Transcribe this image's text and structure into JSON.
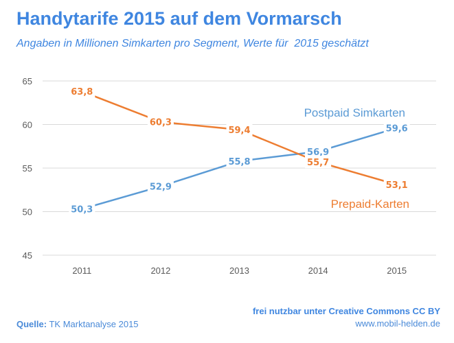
{
  "title": "Handytarife 2015 auf dem Vormarsch",
  "subtitle": "Angaben in Millionen Simkarten pro Segment, Werte für  2015 geschätzt",
  "footer": {
    "source_label": "Quelle:",
    "source_text": "TK Marktanalyse 2015",
    "license": "frei nutzbar unter Creative Commons CC BY",
    "url": "www.mobil-helden.de"
  },
  "chart_data": {
    "type": "line",
    "categories": [
      "2011",
      "2012",
      "2013",
      "2014",
      "2015"
    ],
    "ylim": [
      45,
      65
    ],
    "yticks": [
      "45",
      "50",
      "55",
      "60",
      "65"
    ],
    "ytick_values": [
      45,
      50,
      55,
      60,
      65
    ],
    "grid": true,
    "series": [
      {
        "name": "Postpaid Simkarten",
        "color": "#5b9bd5",
        "values": [
          50.3,
          52.9,
          55.8,
          56.9,
          59.6
        ],
        "labels": [
          "50,3",
          "52,9",
          "55,8",
          "56,9",
          "59,6"
        ]
      },
      {
        "name": "Prepaid-Karten",
        "color": "#ed7d31",
        "values": [
          63.8,
          60.3,
          59.4,
          55.7,
          53.1
        ],
        "labels": [
          "63,8",
          "60,3",
          "59,4",
          "55,7",
          "53,1"
        ]
      }
    ]
  }
}
